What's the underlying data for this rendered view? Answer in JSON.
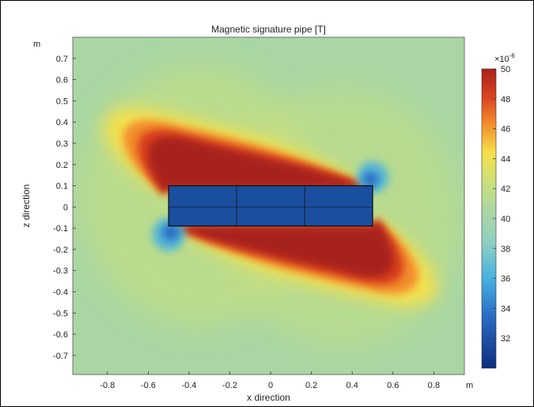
{
  "chart_data": {
    "type": "heatmap",
    "title": "Magnetic signature pipe [T]",
    "xlabel": "x direction",
    "ylabel": "z direction",
    "x_unit": "m",
    "y_unit": "m",
    "xlim": [
      -0.97,
      0.95
    ],
    "ylim": [
      -0.79,
      0.8
    ],
    "x_ticks": [
      -0.8,
      -0.6,
      -0.4,
      -0.2,
      0,
      0.2,
      0.4,
      0.6,
      0.8
    ],
    "x_tick_labels": [
      "-0.8",
      "-0.6",
      "-0.4",
      "-0.2",
      "0",
      "0.2",
      "0.4",
      "0.6",
      "0.8"
    ],
    "y_ticks": [
      0.7,
      0.6,
      0.5,
      0.4,
      0.3,
      0.2,
      0.1,
      0,
      -0.1,
      -0.2,
      -0.3,
      -0.4,
      -0.5,
      -0.6,
      -0.7
    ],
    "y_tick_labels": [
      "0.7",
      "0.6",
      "0.5",
      "0.4",
      "0.3",
      "0.2",
      "0.1",
      "0",
      "-0.1",
      "-0.2",
      "-0.3",
      "-0.4",
      "-0.5",
      "-0.6",
      "-0.7"
    ],
    "colorbar": {
      "exponent_label": "×10",
      "exponent": "-6",
      "range": [
        30,
        50
      ],
      "ticks": [
        32,
        34,
        36,
        38,
        40,
        42,
        44,
        46,
        48,
        50
      ],
      "tick_labels": [
        "32",
        "34",
        "36",
        "38",
        "40",
        "42",
        "44",
        "46",
        "48",
        "50"
      ]
    },
    "background_value": 40.5,
    "pipe": {
      "x_range": [
        -0.5,
        0.5
      ],
      "z_range": [
        -0.09,
        0.1
      ],
      "value": 30.5,
      "segment_x": [
        -0.167,
        0.167
      ],
      "mid_z": 0.0
    },
    "colors": {
      "c30": "#0d2d7e",
      "c34": "#2a6fc6",
      "c36": "#46b2e0",
      "c40": "#a9d6a3",
      "c42": "#c9e07a",
      "c44": "#f7e04a",
      "c46": "#f28a2c",
      "c48": "#d9401f",
      "c50": "#a8231a",
      "pipe": "#1a4e9e",
      "pipe_edge": "#111111"
    }
  }
}
